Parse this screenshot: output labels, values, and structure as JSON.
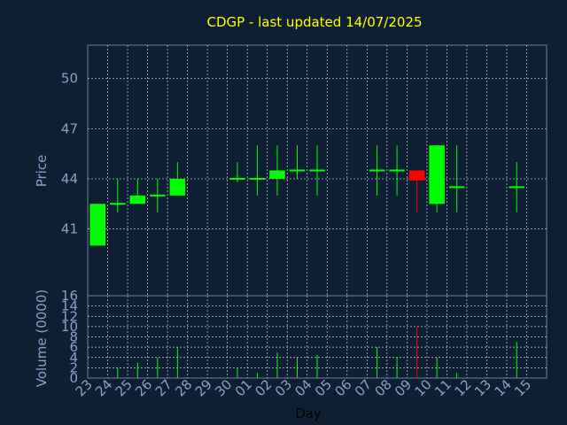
{
  "chart_data": {
    "type": "candlestick",
    "title": "CDGP - last updated 14/07/2025",
    "xlabel": "Day",
    "ylabel": "Price",
    "volume_label": "Volume (0000)",
    "price_ylim": [
      37.0,
      52.0
    ],
    "price_ticks": [
      "50",
      "47",
      "44",
      "41"
    ],
    "volume_ylim": [
      0,
      16
    ],
    "volume_ticks": [
      "16",
      "14",
      "12",
      "10",
      "8",
      "6",
      "4",
      "2",
      "0"
    ],
    "grid": true,
    "categories": [
      "23",
      "24",
      "25",
      "26",
      "27",
      "28",
      "29",
      "30",
      "01",
      "02",
      "03",
      "04",
      "05",
      "06",
      "07",
      "08",
      "09",
      "10",
      "11",
      "12",
      "13",
      "14",
      "15"
    ],
    "up_color": "#00ff00",
    "down_color": "#ff0000",
    "candles": [
      {
        "day": "23",
        "open": 40.0,
        "high": 42.5,
        "low": 40.0,
        "close": 42.5,
        "volume": 0
      },
      {
        "day": "24",
        "open": 42.5,
        "high": 44.0,
        "low": 42.0,
        "close": 42.5,
        "volume": 2
      },
      {
        "day": "25",
        "open": 42.5,
        "high": 44.0,
        "low": 42.5,
        "close": 43.0,
        "volume": 3
      },
      {
        "day": "26",
        "open": 43.0,
        "high": 44.0,
        "low": 42.0,
        "close": 43.0,
        "volume": 4
      },
      {
        "day": "27",
        "open": 43.0,
        "high": 45.0,
        "low": 43.0,
        "close": 44.0,
        "volume": 6
      },
      {
        "day": "30",
        "open": 44.0,
        "high": 45.0,
        "low": 43.8,
        "close": 44.0,
        "volume": 2
      },
      {
        "day": "01",
        "open": 44.0,
        "high": 46.0,
        "low": 43.0,
        "close": 44.0,
        "volume": 1
      },
      {
        "day": "02",
        "open": 44.0,
        "high": 46.0,
        "low": 43.0,
        "close": 44.5,
        "volume": 5
      },
      {
        "day": "03",
        "open": 44.5,
        "high": 46.0,
        "low": 44.0,
        "close": 44.5,
        "volume": 4
      },
      {
        "day": "04",
        "open": 44.5,
        "high": 46.0,
        "low": 43.0,
        "close": 44.5,
        "volume": 4.5
      },
      {
        "day": "07",
        "open": 44.5,
        "high": 46.0,
        "low": 43.0,
        "close": 44.5,
        "volume": 6
      },
      {
        "day": "08",
        "open": 44.5,
        "high": 46.0,
        "low": 43.0,
        "close": 44.5,
        "volume": 4
      },
      {
        "day": "09",
        "open": 44.5,
        "high": 44.5,
        "low": 42.0,
        "close": 43.9,
        "volume": 10
      },
      {
        "day": "10",
        "open": 42.5,
        "high": 46.0,
        "low": 42.0,
        "close": 46.0,
        "volume": 4
      },
      {
        "day": "11",
        "open": 43.5,
        "high": 46.0,
        "low": 42.0,
        "close": 43.5,
        "volume": 1
      },
      {
        "day": "14",
        "open": 43.5,
        "high": 45.0,
        "low": 42.0,
        "close": 43.5,
        "volume": 7
      }
    ]
  }
}
